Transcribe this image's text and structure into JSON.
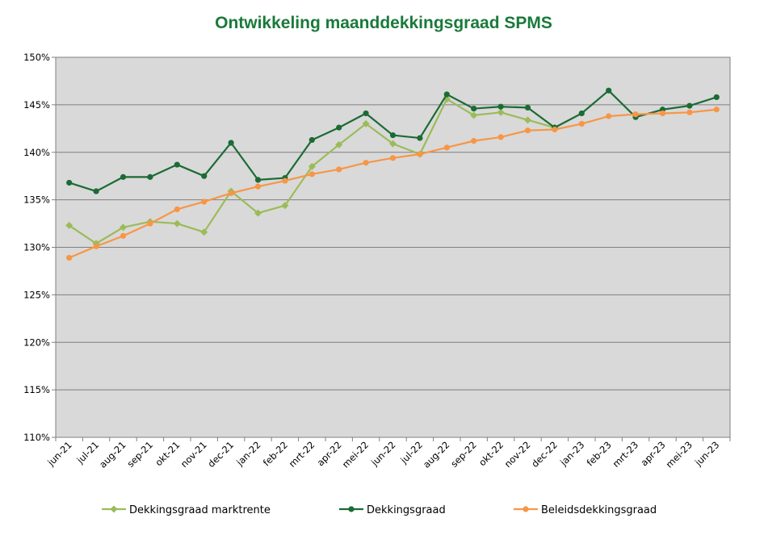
{
  "chart_data": {
    "type": "line",
    "title": "Ontwikkeling maanddekkingsgraad SPMS",
    "xlabel": "",
    "ylabel": "",
    "categories": [
      "jun-21",
      "jul-21",
      "aug-21",
      "sep-21",
      "okt-21",
      "nov-21",
      "dec-21",
      "jan-22",
      "feb-22",
      "mrt-22",
      "apr-22",
      "mei-22",
      "jun-22",
      "jul-22",
      "aug-22",
      "sep-22",
      "okt-22",
      "nov-22",
      "dec-22",
      "jan-23",
      "feb-23",
      "mrt-23",
      "apr-23",
      "mei-23",
      "jun-23"
    ],
    "ylim": [
      110,
      150
    ],
    "yticks": [
      "110%",
      "115%",
      "120%",
      "125%",
      "130%",
      "135%",
      "140%",
      "145%",
      "150%"
    ],
    "grid": true,
    "legend_position": "bottom",
    "series": [
      {
        "name": "Dekkingsgraad marktrente",
        "color": "#9bbb59",
        "marker": "diamond",
        "values": [
          132.3,
          130.4,
          132.1,
          132.7,
          132.5,
          131.6,
          135.9,
          133.6,
          134.4,
          138.5,
          140.8,
          143.0,
          140.9,
          139.8,
          145.6,
          143.9,
          144.2,
          143.4,
          142.6,
          null,
          null,
          null,
          null,
          null,
          null
        ]
      },
      {
        "name": "Dekkingsgraad",
        "color": "#1b6b34",
        "marker": "circle",
        "values": [
          136.8,
          135.9,
          137.4,
          137.4,
          138.7,
          137.5,
          141.0,
          137.1,
          137.3,
          141.3,
          142.6,
          144.1,
          141.8,
          141.5,
          146.1,
          144.6,
          144.8,
          144.7,
          142.6,
          144.1,
          146.5,
          143.7,
          144.5,
          144.9,
          145.8
        ]
      },
      {
        "name": "Beleidsdekkingsgraad",
        "color": "#f79646",
        "marker": "circle",
        "values": [
          128.9,
          130.1,
          131.2,
          132.5,
          134.0,
          134.8,
          135.7,
          136.4,
          137.0,
          137.7,
          138.2,
          138.9,
          139.4,
          139.8,
          140.5,
          141.2,
          141.6,
          142.3,
          142.4,
          143.0,
          143.8,
          144.0,
          144.1,
          144.2,
          144.5
        ]
      }
    ]
  }
}
